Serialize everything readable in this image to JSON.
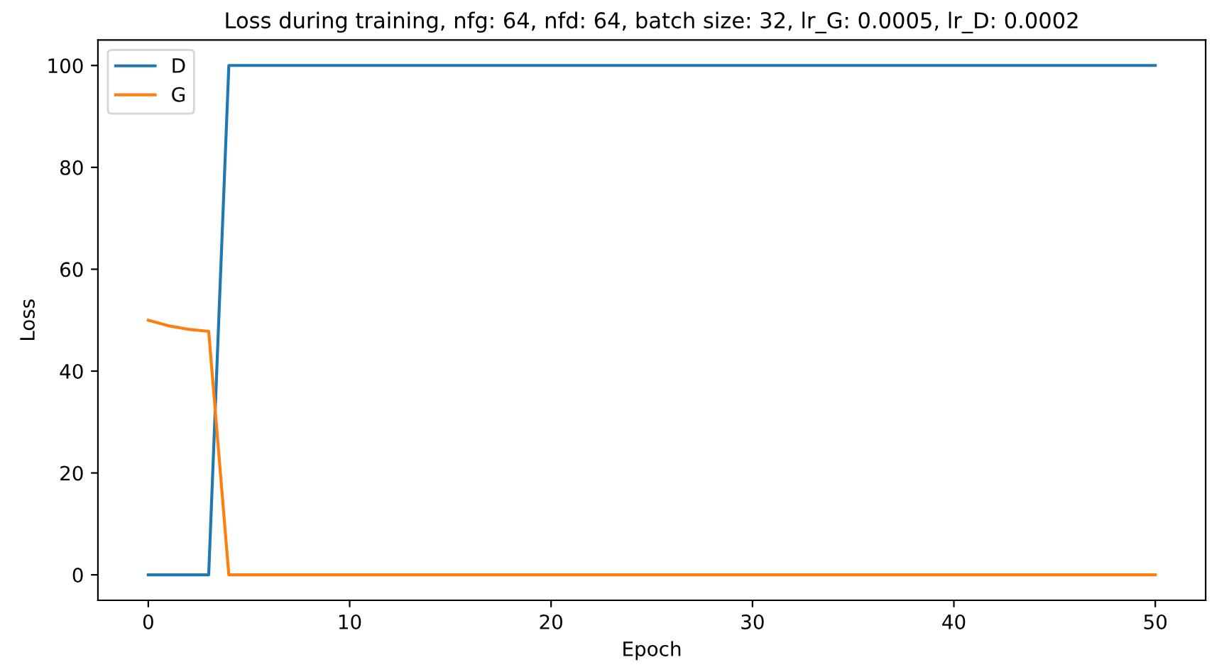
{
  "chart_data": {
    "type": "line",
    "title": "Loss during training, nfg: 64, nfd: 64, batch size: 32, lr_G: 0.0005, lr_D: 0.0002",
    "xlabel": "Epoch",
    "ylabel": "Loss",
    "x": [
      0,
      1,
      2,
      3,
      4,
      5,
      6,
      7,
      8,
      9,
      10,
      11,
      12,
      13,
      14,
      15,
      16,
      17,
      18,
      19,
      20,
      21,
      22,
      23,
      24,
      25,
      26,
      27,
      28,
      29,
      30,
      31,
      32,
      33,
      34,
      35,
      36,
      37,
      38,
      39,
      40,
      41,
      42,
      43,
      44,
      45,
      46,
      47,
      48,
      49,
      50
    ],
    "series": [
      {
        "name": "D",
        "color": "#1f77b4",
        "values": [
          0,
          0,
          0,
          0,
          100,
          100,
          100,
          100,
          100,
          100,
          100,
          100,
          100,
          100,
          100,
          100,
          100,
          100,
          100,
          100,
          100,
          100,
          100,
          100,
          100,
          100,
          100,
          100,
          100,
          100,
          100,
          100,
          100,
          100,
          100,
          100,
          100,
          100,
          100,
          100,
          100,
          100,
          100,
          100,
          100,
          100,
          100,
          100,
          100,
          100,
          100
        ]
      },
      {
        "name": "G",
        "color": "#ff7f0e",
        "values": [
          50,
          48.9,
          48.2,
          47.8,
          0,
          0,
          0,
          0,
          0,
          0,
          0,
          0,
          0,
          0,
          0,
          0,
          0,
          0,
          0,
          0,
          0,
          0,
          0,
          0,
          0,
          0,
          0,
          0,
          0,
          0,
          0,
          0,
          0,
          0,
          0,
          0,
          0,
          0,
          0,
          0,
          0,
          0,
          0,
          0,
          0,
          0,
          0,
          0,
          0,
          0,
          0
        ]
      }
    ],
    "xlim": [
      -2.5,
      52.5
    ],
    "ylim": [
      -5,
      105
    ],
    "xticks": [
      0,
      10,
      20,
      30,
      40,
      50
    ],
    "yticks": [
      0,
      20,
      40,
      60,
      80,
      100
    ],
    "grid": false,
    "legend": "top left"
  }
}
